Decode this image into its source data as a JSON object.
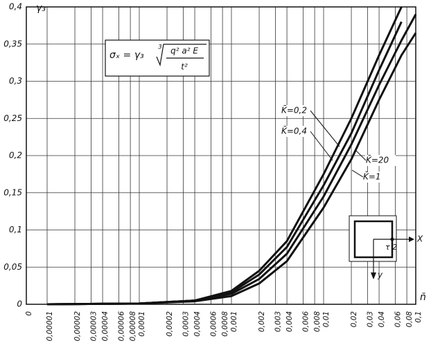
{
  "chart_data": {
    "type": "line",
    "y_label": "γ₃",
    "x_label": "n̄",
    "formula": {
      "lhs": "σₓ = γ₃",
      "root": "3",
      "numerator": "q² a² E",
      "denominator": "t²"
    },
    "inset": {
      "x_axis": "X",
      "y_axis": "y",
      "point": "τ 2"
    },
    "xscale": "log",
    "grid": true,
    "xlim": [
      1e-05,
      0.1
    ],
    "ylim": [
      0,
      0.4
    ],
    "xticks": [
      0,
      {
        "value": 1e-05,
        "label": "0,00001"
      },
      {
        "value": 2e-05,
        "label": "0,00002"
      },
      {
        "value": 3e-05,
        "label": "0,00003"
      },
      {
        "value": 4e-05,
        "label": "0,00004"
      },
      {
        "value": 6e-05,
        "label": "0,00006"
      },
      {
        "value": 8e-05,
        "label": "0,00008"
      },
      {
        "value": 0.0001,
        "label": "0,0001"
      },
      {
        "value": 0.0002,
        "label": "0,0002"
      },
      {
        "value": 0.0003,
        "label": "0,0003"
      },
      {
        "value": 0.0004,
        "label": "0,0004"
      },
      {
        "value": 0.0006,
        "label": "0,0006"
      },
      {
        "value": 0.0008,
        "label": "0,0008"
      },
      {
        "value": 0.001,
        "label": "0,001"
      },
      {
        "value": 0.002,
        "label": "0,002"
      },
      {
        "value": 0.003,
        "label": "0,003"
      },
      {
        "value": 0.004,
        "label": "0,004"
      },
      {
        "value": 0.006,
        "label": "0,006"
      },
      {
        "value": 0.008,
        "label": "0,008"
      },
      {
        "value": 0.01,
        "label": "0,01"
      },
      {
        "value": 0.02,
        "label": "0,02"
      },
      {
        "value": 0.03,
        "label": "0,03"
      },
      {
        "value": 0.04,
        "label": "0,04"
      },
      {
        "value": 0.06,
        "label": "0,06"
      },
      {
        "value": 0.08,
        "label": "0,08"
      },
      {
        "value": 0.1,
        "label": "0,1"
      }
    ],
    "yticks": [
      0,
      {
        "value": 0.05,
        "label": "0,05"
      },
      {
        "value": 0.1,
        "label": "0,1"
      },
      {
        "value": 0.15,
        "label": "0,15"
      },
      {
        "value": 0.2,
        "label": "0,2"
      },
      {
        "value": 0.25,
        "label": "0,25"
      },
      {
        "value": 0.3,
        "label": "0,3"
      },
      {
        "value": 0.35,
        "label": "0,35"
      },
      {
        "value": 0.4,
        "label": "0,4"
      }
    ],
    "x": [
      1e-05,
      0.0001,
      0.0004,
      0.001,
      0.002,
      0.004,
      0.01,
      0.02,
      0.04,
      0.07,
      0.1
    ],
    "series": [
      {
        "name": "K̄=0,2",
        "color": "#111111",
        "values": [
          0,
          0.001,
          0.005,
          0.018,
          0.045,
          0.085,
          0.175,
          0.25,
          0.335,
          0.4,
          null
        ]
      },
      {
        "name": "K̄=0,4",
        "color": "#111111",
        "values": [
          0,
          0.001,
          0.005,
          0.016,
          0.04,
          0.077,
          0.16,
          0.23,
          0.315,
          0.38,
          null
        ]
      },
      {
        "name": "K̄=20",
        "color": "#111111",
        "values": [
          0,
          0.001,
          0.005,
          0.014,
          0.034,
          0.068,
          0.145,
          0.215,
          0.295,
          0.355,
          0.39
        ]
      },
      {
        "name": "K̄=1",
        "color": "#111111",
        "values": [
          0,
          0.001,
          0.004,
          0.011,
          0.028,
          0.058,
          0.13,
          0.195,
          0.275,
          0.335,
          0.365
        ]
      }
    ]
  }
}
